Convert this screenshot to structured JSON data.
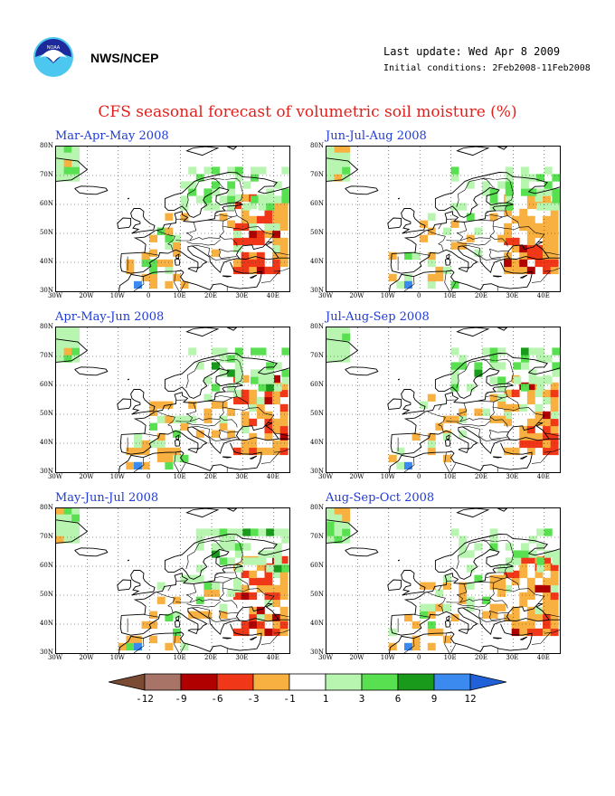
{
  "header": {
    "agency": "NWS/NCEP",
    "last_update": "Last update: Wed Apr 8 2009",
    "initial_conditions": "Initial conditions: 2Feb2008-11Feb2008",
    "title": "CFS seasonal forecast of volumetric soil moisture (%)"
  },
  "axes": {
    "lat_labels": [
      "80N",
      "70N",
      "60N",
      "50N",
      "40N",
      "30N"
    ],
    "lon_labels": [
      "30W",
      "20W",
      "10W",
      "0",
      "10E",
      "20E",
      "30E",
      "40E"
    ]
  },
  "panels": [
    {
      "title": "Mar-Apr-May 2008"
    },
    {
      "title": "Jun-Jul-Aug 2008"
    },
    {
      "title": "Apr-May-Jun 2008"
    },
    {
      "title": "Jul-Aug-Sep 2008"
    },
    {
      "title": "May-Jun-Jul 2008"
    },
    {
      "title": "Aug-Sep-Oct 2008"
    }
  ],
  "colorbar": {
    "labels": [
      "-12",
      "-9",
      "-6",
      "-3",
      "-1",
      "1",
      "3",
      "6",
      "9",
      "12"
    ],
    "colors": [
      "#7a4a32",
      "#a87468",
      "#b00000",
      "#f03818",
      "#f8b040",
      "#ffffff",
      "#b8f5b0",
      "#58e050",
      "#1a9a1a",
      "#3a8af0",
      "#2060d8"
    ]
  },
  "colors": {
    "title": "#e0201c",
    "panel_title": "#1f3ad8"
  }
}
